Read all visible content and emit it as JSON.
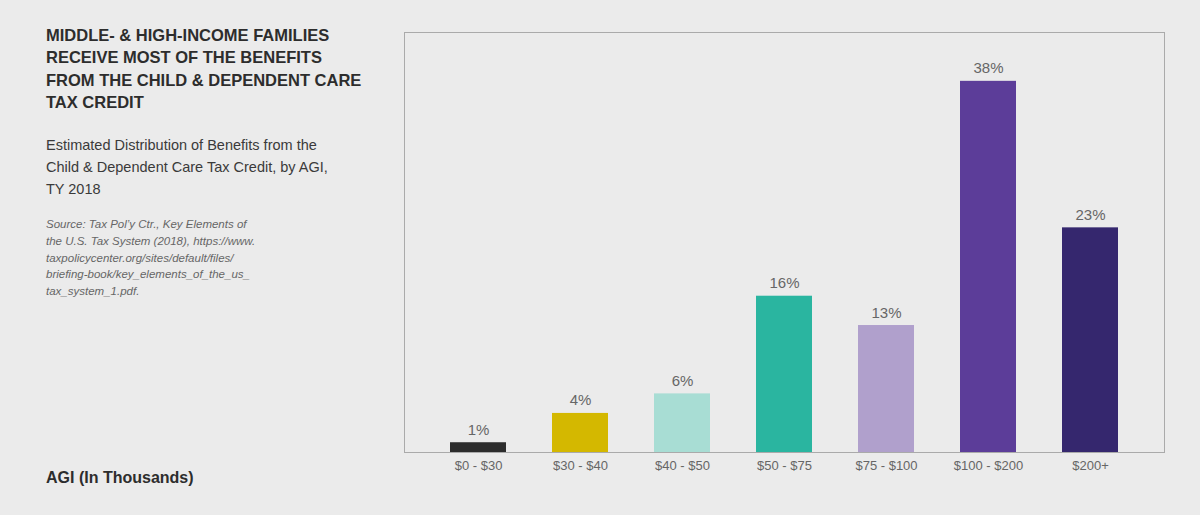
{
  "chart_data": {
    "type": "bar",
    "title": "MIDDLE- & HIGH-INCOME FAMILIES\nRECEIVE MOST OF THE BENEFITS\nFROM THE CHILD & DEPENDENT CARE\nTAX CREDIT",
    "subtitle": "Estimated Distribution of Benefits from the\nChild & Dependent Care Tax Credit, by AGI,\nTY 2018",
    "annotations": [
      "Source: Tax Pol’y Ctr., Key Elements of\nthe U.S. Tax System (2018), https://www.\ntaxpolicycenter.org/sites/default/files/\nbriefing-book/key_elements_of_the_us_\ntax_system_1.pdf."
    ],
    "xlabel": "AGI (In Thousands)",
    "categories": [
      "$0 - $30",
      "$30 - $40",
      "$40 - $50",
      "$50 - $75",
      "$75 - $100",
      "$100 - $200",
      "$200+"
    ],
    "values": [
      1,
      4,
      6,
      16,
      13,
      38,
      23
    ],
    "value_labels": [
      "1%",
      "4%",
      "6%",
      "16%",
      "13%",
      "38%",
      "23%"
    ],
    "colors": [
      "#2d2d2d",
      "#d4b800",
      "#a8ddd4",
      "#2ab5a0",
      "#b0a0cc",
      "#5c3d99",
      "#35276e"
    ],
    "ylim": [
      0,
      43
    ],
    "data_labels": true,
    "tick_labels": "x",
    "grid": false
  }
}
